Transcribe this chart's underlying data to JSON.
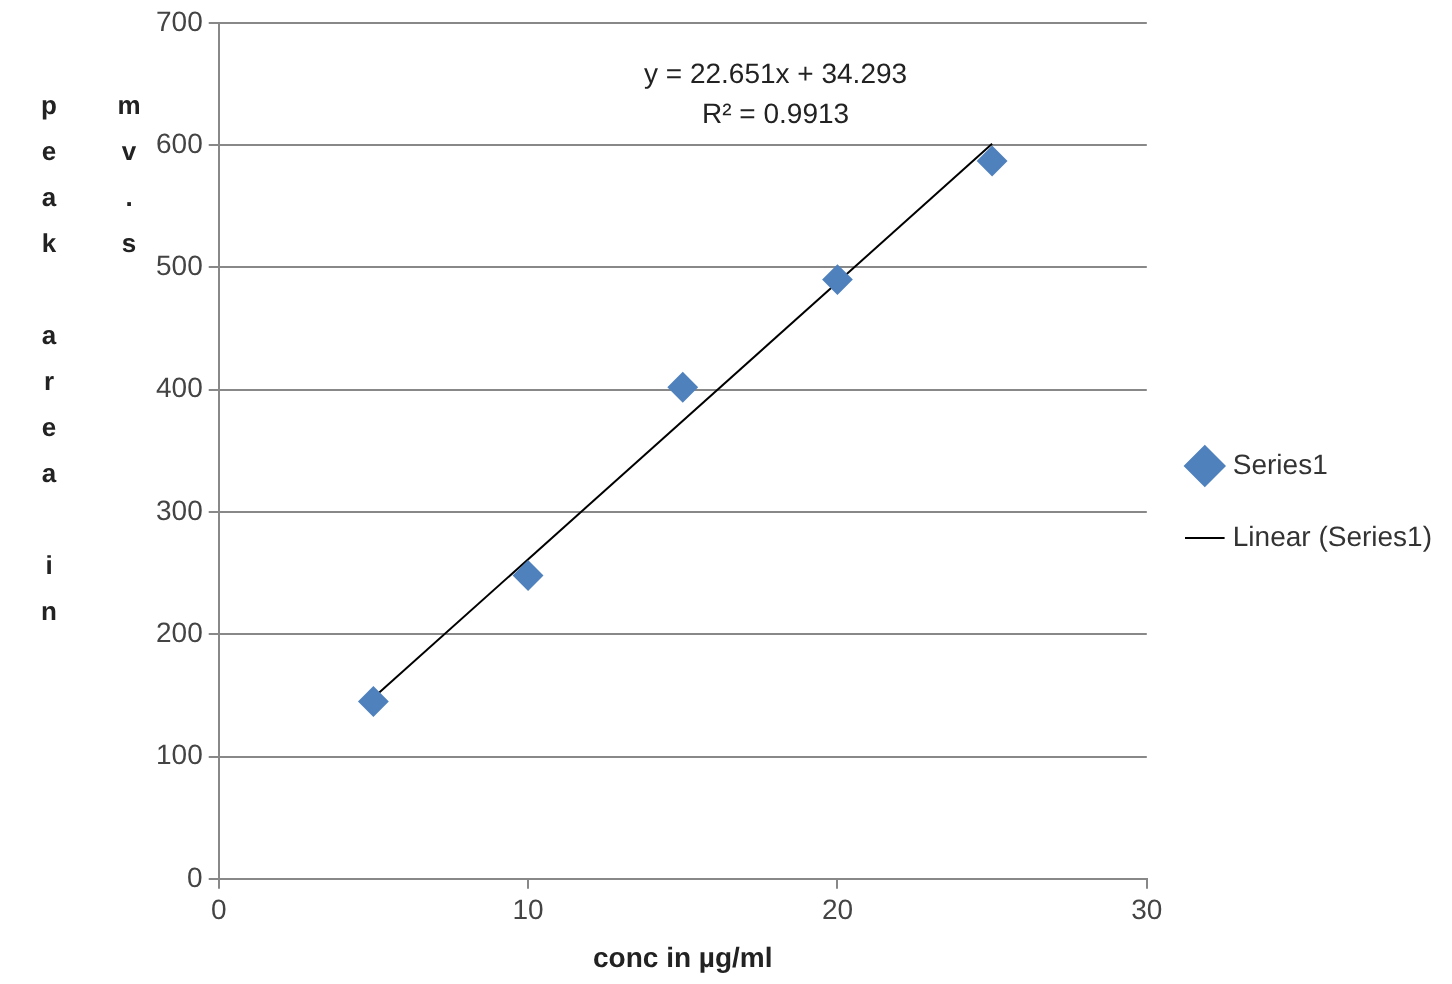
{
  "chart_data": {
    "type": "scatter",
    "xlabel": "conc in µg/ml",
    "ylabel": "peak area in mv.s",
    "annotations": [
      "y = 22.651x + 34.293",
      "R² = 0.9913"
    ],
    "series": [
      {
        "name": "Series1",
        "type": "scatter",
        "marker": "diamond",
        "color": "#4f81bd",
        "x": [
          5,
          10,
          15,
          20,
          25
        ],
        "values": [
          145,
          248,
          402,
          490,
          587
        ]
      },
      {
        "name": "Linear (Series1)",
        "type": "line",
        "marker": "none",
        "color": "#000000",
        "x": [
          5,
          25
        ],
        "values": [
          148,
          601
        ]
      }
    ],
    "xlim": [
      0,
      30
    ],
    "xticks": [
      0,
      10,
      20,
      30
    ],
    "ylim": [
      0,
      700
    ],
    "yticks": [
      0,
      100,
      200,
      300,
      400,
      500,
      600,
      700
    ],
    "grid": "y",
    "legend": "right",
    "line_style": "solid"
  }
}
